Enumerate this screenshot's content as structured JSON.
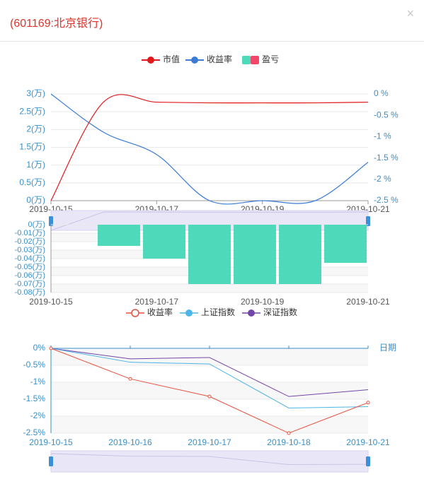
{
  "dialog": {
    "title": "(601169:北京银行)",
    "close_glyph": "×"
  },
  "colors": {
    "market_value": "#e0191c",
    "return_rate": "#3a7bd5",
    "pnl": "#4fd9bb",
    "pnl_neg": "#f0476a",
    "axis": "#3a8fc8",
    "grid": "#e9e9e9",
    "band": "#f7f7f7",
    "zoom_fill": "#e9e6f7",
    "zoom_handle": "#3a8fd9",
    "stock_return": "#e8503d",
    "sh_index": "#4cb6e8",
    "sz_index": "#7146a8"
  },
  "chart_data": [
    {
      "type": "line",
      "id": "market-value-and-return",
      "legend": [
        "市值",
        "收益率",
        "盈亏"
      ],
      "x": [
        "2019-10-15",
        "2019-10-16",
        "2019-10-17",
        "2019-10-18",
        "2019-10-19",
        "2019-10-20",
        "2019-10-21"
      ],
      "x_tick_labels": [
        "2019-10-15",
        "2019-10-17",
        "2019-10-19",
        "2019-10-21"
      ],
      "y_left_ticks": [
        "3(万)",
        "2.5(万)",
        "2(万)",
        "1.5(万)",
        "1(万)",
        "0.5(万)",
        "0(万)"
      ],
      "y_left_lim": [
        0,
        3
      ],
      "y_right_ticks": [
        "0 %",
        "-0.5 %",
        "-1 %",
        "-1.5 %",
        "-2 %",
        "-2.5 %"
      ],
      "y_right_lim": [
        -2.5,
        0
      ],
      "series": [
        {
          "name": "市值",
          "axis": "left",
          "values": [
            0,
            2.78,
            2.77,
            2.75,
            2.75,
            2.75,
            2.77
          ]
        },
        {
          "name": "收益率",
          "axis": "right",
          "values": [
            0,
            -0.9,
            -1.42,
            -2.5,
            -2.5,
            -2.5,
            -1.6
          ]
        }
      ]
    },
    {
      "type": "bar",
      "id": "profit-loss",
      "x": [
        "2019-10-15",
        "2019-10-16",
        "2019-10-17",
        "2019-10-18",
        "2019-10-19",
        "2019-10-20",
        "2019-10-21"
      ],
      "x_tick_labels": [
        "2019-10-15",
        "2019-10-17",
        "2019-10-19",
        "2019-10-21"
      ],
      "y_ticks": [
        "0(万)",
        "-0.01(万)",
        "-0.02(万)",
        "-0.03(万)",
        "-0.04(万)",
        "-0.05(万)",
        "-0.06(万)",
        "-0.07(万)",
        "-0.08(万)"
      ],
      "ylim": [
        -0.08,
        0
      ],
      "series": [
        {
          "name": "盈亏",
          "values": [
            0,
            -0.025,
            -0.04,
            -0.07,
            -0.07,
            -0.07,
            -0.045
          ]
        }
      ]
    },
    {
      "type": "line",
      "id": "return-vs-index",
      "legend": [
        "收益率",
        "上证指数",
        "深证指数"
      ],
      "x": [
        "2019-10-15",
        "2019-10-16",
        "2019-10-17",
        "2019-10-18",
        "2019-10-21"
      ],
      "x_axis_name": "日期",
      "y_ticks": [
        "0%",
        "-0.5%",
        "-1%",
        "-1.5%",
        "-2%",
        "-2.5%"
      ],
      "ylim": [
        -2.5,
        0
      ],
      "series": [
        {
          "name": "收益率",
          "values": [
            0,
            -0.9,
            -1.42,
            -2.5,
            -1.6
          ]
        },
        {
          "name": "上证指数",
          "values": [
            0,
            -0.41,
            -0.46,
            -1.76,
            -1.72
          ]
        },
        {
          "name": "深证指数",
          "values": [
            0,
            -0.31,
            -0.27,
            -1.42,
            -1.22
          ]
        }
      ]
    }
  ]
}
